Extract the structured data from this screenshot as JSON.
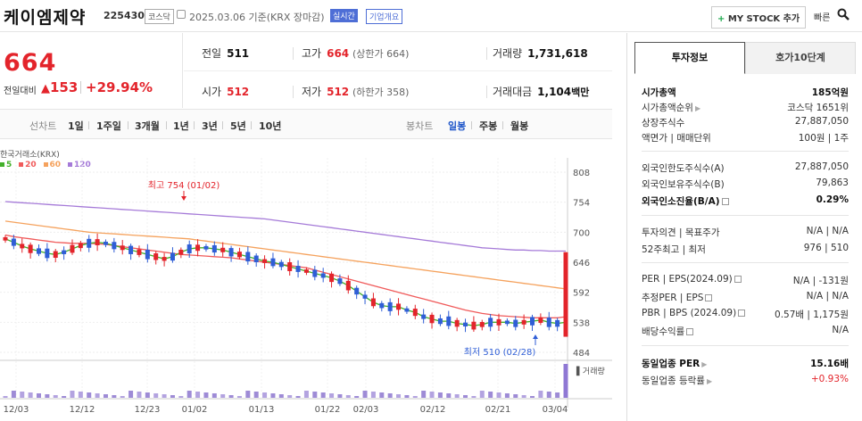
{
  "header": {
    "company_name": "케이엠제약",
    "code": "225430",
    "market_badge": "코스닥",
    "date_text": "2025.03.06  기준(KRX 장마감)",
    "realtime_badge": "실시간",
    "company_info_badge": "기업개요",
    "my_stock_button": "MY STOCK 추가",
    "quick_search_label": "빠른",
    "search_icon": "search-icon"
  },
  "price": {
    "current": "664",
    "change_label": "전일대비",
    "change_amount": "153",
    "change_percent": "+29.94%",
    "up_color": "#e3242b"
  },
  "quote": {
    "prev_close_label": "전일",
    "prev_close": "511",
    "high_label": "고가",
    "high": "664",
    "upper_limit_text": "(상한가 664)",
    "volume_label": "거래량",
    "volume": "1,731,618",
    "open_label": "시가",
    "open": "512",
    "low_label": "저가",
    "low": "512",
    "lower_limit_text": "(하한가 358)",
    "trade_value_label": "거래대금",
    "trade_value": "1,104",
    "trade_value_unit": "백만"
  },
  "toolbar": {
    "chart_type_label": "선차트",
    "periods": [
      "1일",
      "1주일",
      "3개월",
      "1년",
      "3년",
      "5년",
      "10년"
    ],
    "candle_label": "봉차트",
    "candle_periods": [
      "일봉",
      "주봉",
      "월봉"
    ],
    "selected_candle": "일봉"
  },
  "chart_legend": {
    "source": "한국거래소(KRX)",
    "ma": [
      {
        "label": "5",
        "color": "#43b02a"
      },
      {
        "label": "20",
        "color": "#f05a5a"
      },
      {
        "label": "60",
        "color": "#f5a25d"
      },
      {
        "label": "120",
        "color": "#a57ad8"
      }
    ]
  },
  "chart_data": {
    "type": "candlestick",
    "y_ticks": [
      "808",
      "754",
      "700",
      "646",
      "592",
      "538",
      "484"
    ],
    "ylim": [
      484,
      808
    ],
    "x_labels": [
      "12/03",
      "12/12",
      "12/23",
      "01/02",
      "01/13",
      "01/22",
      "02/03",
      "02/12",
      "02/21",
      "03/04"
    ],
    "high_annotation": "최고 754 (01/02)",
    "low_annotation": "최저 510 (02/28)",
    "volume_label": "거래량",
    "ma5": [
      688,
      682,
      675,
      670,
      666,
      662,
      660,
      664,
      670,
      676,
      680,
      682,
      680,
      676,
      672,
      668,
      664,
      660,
      656,
      652,
      656,
      664,
      670,
      672,
      672,
      670,
      668,
      664,
      660,
      656,
      652,
      648,
      646,
      642,
      638,
      634,
      630,
      626,
      622,
      618,
      612,
      604,
      594,
      584,
      574,
      568,
      566,
      566,
      560,
      556,
      548,
      544,
      540,
      540,
      536,
      534,
      532,
      534,
      538,
      538,
      538,
      536,
      538,
      540,
      542,
      538,
      536,
      538
    ],
    "ma20": [
      695,
      692,
      690,
      688,
      686,
      684,
      682,
      681,
      680,
      680,
      680,
      679,
      678,
      676,
      674,
      672,
      670,
      668,
      666,
      664,
      662,
      660,
      659,
      658,
      657,
      656,
      655,
      654,
      652,
      650,
      648,
      646,
      644,
      642,
      640,
      638,
      636,
      632,
      628,
      624,
      620,
      616,
      612,
      608,
      604,
      600,
      596,
      592,
      588,
      584,
      580,
      576,
      572,
      568,
      564,
      560,
      557,
      554,
      552,
      550,
      549,
      548,
      547,
      546,
      546,
      546,
      546,
      548
    ],
    "ma60": [
      720,
      718,
      716,
      714,
      712,
      710,
      708,
      706,
      704,
      702,
      700,
      699,
      698,
      697,
      696,
      695,
      694,
      693,
      692,
      691,
      690,
      689,
      688,
      686,
      684,
      682,
      680,
      678,
      676,
      674,
      672,
      670,
      668,
      666,
      664,
      662,
      660,
      658,
      656,
      654,
      652,
      650,
      648,
      646,
      644,
      642,
      640,
      638,
      636,
      634,
      632,
      630,
      628,
      626,
      624,
      622,
      620,
      618,
      616,
      614,
      612,
      610,
      608,
      606,
      604,
      602,
      600,
      598
    ],
    "ma120": [
      755,
      754,
      753,
      752,
      751,
      750,
      749,
      748,
      747,
      746,
      745,
      744,
      743,
      742,
      741,
      740,
      739,
      738,
      737,
      736,
      735,
      734,
      733,
      732,
      731,
      730,
      729,
      728,
      727,
      726,
      725,
      724,
      722,
      720,
      718,
      716,
      714,
      712,
      710,
      708,
      706,
      704,
      702,
      700,
      698,
      696,
      694,
      692,
      690,
      688,
      686,
      684,
      682,
      680,
      678,
      676,
      674,
      672,
      671,
      670,
      669,
      668,
      668,
      667,
      667,
      666,
      666,
      666
    ]
  },
  "panel": {
    "tab_active": "투자정보",
    "tab_other": "호가10단계",
    "market_cap_label": "시가총액",
    "market_cap": "185억원",
    "market_cap_rank_label": "시가총액순위",
    "market_cap_rank": "코스닥 1651위",
    "shares_label": "상장주식수",
    "shares": "27,887,050",
    "par_label": "액면가 | 매매단위",
    "par": "100원 | 1주",
    "foreign_limit_label": "외국인한도주식수(A)",
    "foreign_limit": "27,887,050",
    "foreign_hold_label": "외국인보유주식수(B)",
    "foreign_hold": "79,863",
    "foreign_ratio_label": "외국인소진율(B/A)",
    "foreign_ratio": "0.29%",
    "opinion_label": "투자의견 | 목표주가",
    "opinion": "N/A | N/A",
    "w52_label": "52주최고 | 최저",
    "w52": "976 | 510",
    "per_label": "PER | EPS(2024.09)",
    "per": "N/A | -131원",
    "est_per_label": "추정PER | EPS",
    "est_per": "N/A | N/A",
    "pbr_label": "PBR | BPS (2024.09)",
    "pbr": "0.57배 | 1,175원",
    "div_label": "배당수익률",
    "div": "N/A",
    "ind_per_label": "동일업종 PER",
    "ind_per": "15.16배",
    "ind_rate_label": "동일업종 등락률",
    "ind_rate": "+0.93%"
  }
}
